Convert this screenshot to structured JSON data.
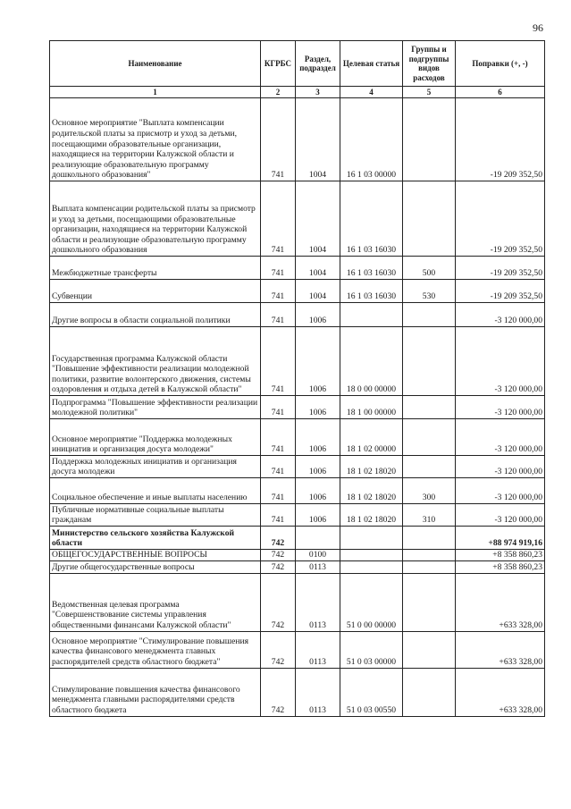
{
  "page_number": "96",
  "table": {
    "headers": [
      "Наименование",
      "КГРБС",
      "Раздел, подраздел",
      "Целевая статья",
      "Группы и подгруппы видов расходов",
      "Поправки (+, -)"
    ],
    "column_numbers": [
      "1",
      "2",
      "3",
      "4",
      "5",
      "6"
    ],
    "rows": [
      {
        "name": "Основное мероприятие \"Выплата компенсации родительской платы за присмотр и уход за детьми, посещающими образовательные организации, находящиеся на территории Калужской области и реализующие образовательную программу дошкольного образования\"",
        "kgrbs": "741",
        "razdel": "1004",
        "statya": "16 1 03 00000",
        "vid": "",
        "amount": "-19 209 352,50"
      },
      {
        "name": "Выплата компенсации родительской платы за присмотр и уход за детьми, посещающими образовательные организации, находящиеся на территории Калужской области и реализующие образовательную программу дошкольного образования",
        "kgrbs": "741",
        "razdel": "1004",
        "statya": "16 1 03 16030",
        "vid": "",
        "amount": "-19 209 352,50"
      },
      {
        "name": "Межбюджетные трансферты",
        "kgrbs": "741",
        "razdel": "1004",
        "statya": "16 1 03 16030",
        "vid": "500",
        "amount": "-19 209 352,50"
      },
      {
        "name": "Субвенции",
        "kgrbs": "741",
        "razdel": "1004",
        "statya": "16 1 03 16030",
        "vid": "530",
        "amount": "-19 209 352,50"
      },
      {
        "name": "Другие вопросы в области социальной политики",
        "kgrbs": "741",
        "razdel": "1006",
        "statya": "",
        "vid": "",
        "amount": "-3 120 000,00"
      },
      {
        "name": "Государственная программа Калужской области \"Повышение эффективности реализации молодежной политики, развитие волонтерского движения, системы оздоровления и отдыха детей в Калужской области\"",
        "kgrbs": "741",
        "razdel": "1006",
        "statya": "18 0 00 00000",
        "vid": "",
        "amount": "-3 120 000,00"
      },
      {
        "name": "Подпрограмма \"Повышение эффективности реализации молодежной политики\"",
        "kgrbs": "741",
        "razdel": "1006",
        "statya": "18 1 00 00000",
        "vid": "",
        "amount": "-3 120 000,00"
      },
      {
        "name": "Основное мероприятие \"Поддержка молодежных инициатив и организация досуга молодежи\"",
        "kgrbs": "741",
        "razdel": "1006",
        "statya": "18 1 02 00000",
        "vid": "",
        "amount": "-3 120 000,00"
      },
      {
        "name": "Поддержка молодежных инициатив и организация досуга молодежи",
        "kgrbs": "741",
        "razdel": "1006",
        "statya": "18 1 02 18020",
        "vid": "",
        "amount": "-3 120 000,00"
      },
      {
        "name": "Социальное обеспечение и иные выплаты населению",
        "kgrbs": "741",
        "razdel": "1006",
        "statya": "18 1 02 18020",
        "vid": "300",
        "amount": "-3 120 000,00"
      },
      {
        "name": "Публичные нормативные социальные выплаты гражданам",
        "kgrbs": "741",
        "razdel": "1006",
        "statya": "18 1 02 18020",
        "vid": "310",
        "amount": "-3 120 000,00"
      },
      {
        "name": "Министерство сельского хозяйства Калужской области",
        "kgrbs": "742",
        "razdel": "",
        "statya": "",
        "vid": "",
        "amount": "+88 974 919,16",
        "bold": true
      },
      {
        "name": "ОБЩЕГОСУДАРСТВЕННЫЕ ВОПРОСЫ",
        "kgrbs": "742",
        "razdel": "0100",
        "statya": "",
        "vid": "",
        "amount": "+8 358 860,23"
      },
      {
        "name": "Другие общегосударственные вопросы",
        "kgrbs": "742",
        "razdel": "0113",
        "statya": "",
        "vid": "",
        "amount": "+8 358 860,23"
      },
      {
        "name": "Ведомственная целевая программа \"Совершенствование системы управления общественными финансами Калужской области\"",
        "kgrbs": "742",
        "razdel": "0113",
        "statya": "51 0 00 00000",
        "vid": "",
        "amount": "+633 328,00"
      },
      {
        "name": "Основное мероприятие \"Стимулирование повышения качества финансового менеджмента главных распорядителей средств областного бюджета\"",
        "kgrbs": "742",
        "razdel": "0113",
        "statya": "51 0 03 00000",
        "vid": "",
        "amount": "+633 328,00"
      },
      {
        "name": "Стимулирование повышения качества финансового менеджмента главными распорядителями средств областного бюджета",
        "kgrbs": "742",
        "razdel": "0113",
        "statya": "51 0 03 00550",
        "vid": "",
        "amount": "+633 328,00"
      }
    ]
  }
}
